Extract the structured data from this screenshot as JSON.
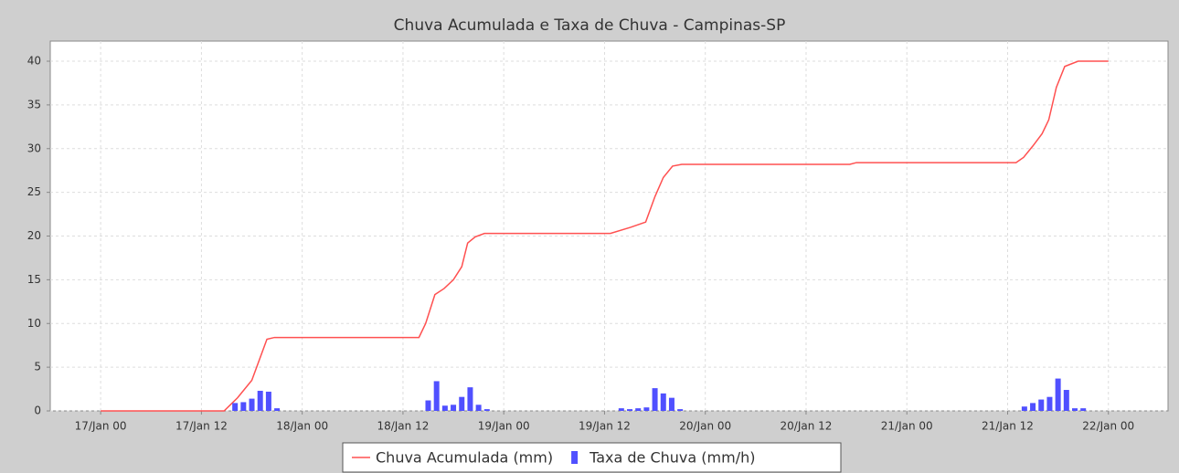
{
  "chart_data": {
    "type": "combo",
    "title": "Chuva Acumulada e Taxa de Chuva - Campinas-SP",
    "xlim": [
      -6,
      127.1
    ],
    "ylim": [
      0,
      42.3
    ],
    "yticks": [
      0,
      5,
      10,
      15,
      20,
      25,
      30,
      35,
      40
    ],
    "xticks": [
      {
        "value": 0,
        "label": "17/Jan 00"
      },
      {
        "value": 12,
        "label": "17/Jan 12"
      },
      {
        "value": 24,
        "label": "18/Jan 00"
      },
      {
        "value": 36,
        "label": "18/Jan 12"
      },
      {
        "value": 48,
        "label": "19/Jan 00"
      },
      {
        "value": 60,
        "label": "19/Jan 12"
      },
      {
        "value": 72,
        "label": "20/Jan 00"
      },
      {
        "value": 84,
        "label": "20/Jan 12"
      },
      {
        "value": 96,
        "label": "21/Jan 00"
      },
      {
        "value": 108,
        "label": "21/Jan 12"
      },
      {
        "value": 120,
        "label": "22/Jan 00"
      }
    ],
    "grid": true,
    "legend": "bottom",
    "series": [
      {
        "name": "Chuva Acumulada (mm)",
        "type": "line",
        "color": "#ff5050",
        "x": [
          0,
          14.7,
          16.3,
          18,
          19.8,
          20.7,
          37.9,
          38.7,
          39.8,
          40.9,
          42,
          43,
          43.7,
          44.6,
          45.7,
          60.7,
          63.1,
          64.9,
          66,
          67,
          68.1,
          69.2,
          89.2,
          90,
          109,
          109.9,
          111,
          112.1,
          112.9,
          113.8,
          114.8,
          116.4,
          120
        ],
        "values": [
          0,
          0,
          1.5,
          3.5,
          8.2,
          8.4,
          8.4,
          10,
          13.3,
          14,
          15,
          16.5,
          19.2,
          19.9,
          20.3,
          20.3,
          21,
          21.6,
          24.5,
          26.7,
          28,
          28.2,
          28.2,
          28.4,
          28.4,
          29,
          30.3,
          31.7,
          33.3,
          37,
          39.4,
          40,
          40
        ]
      },
      {
        "name": "Taxa de Chuva (mm/h)",
        "type": "bar",
        "color": "#5050ff",
        "x": [
          16,
          17,
          18,
          19,
          20,
          21,
          39,
          40,
          41,
          42,
          43,
          44,
          45,
          46,
          62,
          63,
          64,
          65,
          66,
          67,
          68,
          69,
          110,
          111,
          112,
          113,
          114,
          115,
          116,
          117
        ],
        "values": [
          0.9,
          1.0,
          1.4,
          2.3,
          2.2,
          0.3,
          1.2,
          3.4,
          0.6,
          0.7,
          1.6,
          2.7,
          0.7,
          0.2,
          0.3,
          0.2,
          0.3,
          0.4,
          2.6,
          2.0,
          1.5,
          0.2,
          0.5,
          0.9,
          1.3,
          1.6,
          3.7,
          2.4,
          0.3,
          0.3
        ]
      }
    ]
  }
}
